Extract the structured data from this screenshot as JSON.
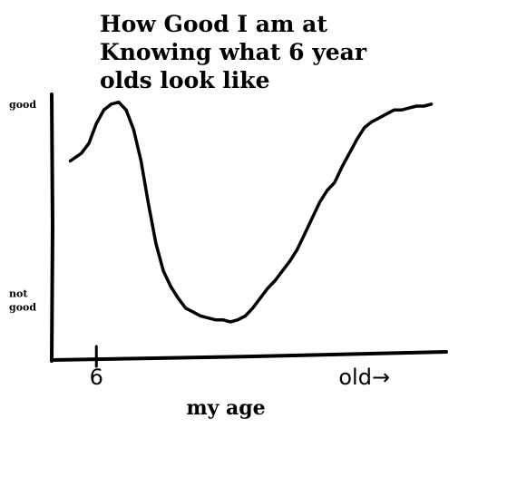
{
  "chart_data": {
    "type": "line",
    "title_lines": [
      "How Good I am at",
      "Knowing what 6 year",
      "olds look like"
    ],
    "xlabel": "my age",
    "ylabel": "",
    "y_ticks": [
      {
        "lines": [
          "good"
        ],
        "value": 1
      },
      {
        "lines": [
          "not",
          "good"
        ],
        "value": 0
      }
    ],
    "x_ticks": [
      {
        "label": "6",
        "value": 6,
        "tick_mark": true
      },
      {
        "label": "old→",
        "value": 42,
        "tick_mark": false
      }
    ],
    "xlim": [
      0,
      53
    ],
    "ylim": [
      -0.3,
      1.05
    ],
    "grid": false,
    "series": [
      {
        "color": "#000000",
        "x": [
          2.5,
          4,
          5,
          6,
          7,
          8,
          9,
          10,
          11,
          12,
          13,
          14,
          15,
          16,
          17,
          18,
          19,
          20,
          21,
          22,
          23,
          24,
          25,
          26,
          27,
          28,
          29,
          30,
          31,
          32,
          33,
          34,
          35,
          36,
          37,
          38,
          39,
          40,
          41,
          42,
          43,
          44,
          45,
          46,
          47,
          48,
          49,
          50,
          51
        ],
        "y": [
          0.71,
          0.75,
          0.8,
          0.9,
          0.97,
          1.0,
          1.01,
          0.97,
          0.87,
          0.71,
          0.49,
          0.29,
          0.15,
          0.07,
          0.01,
          -0.04,
          -0.06,
          -0.08,
          -0.09,
          -0.1,
          -0.1,
          -0.11,
          -0.1,
          -0.08,
          -0.04,
          0.01,
          0.06,
          0.1,
          0.15,
          0.2,
          0.26,
          0.34,
          0.42,
          0.5,
          0.56,
          0.6,
          0.68,
          0.75,
          0.82,
          0.88,
          0.91,
          0.93,
          0.95,
          0.97,
          0.97,
          0.98,
          0.99,
          0.99,
          1.0
        ]
      }
    ]
  }
}
